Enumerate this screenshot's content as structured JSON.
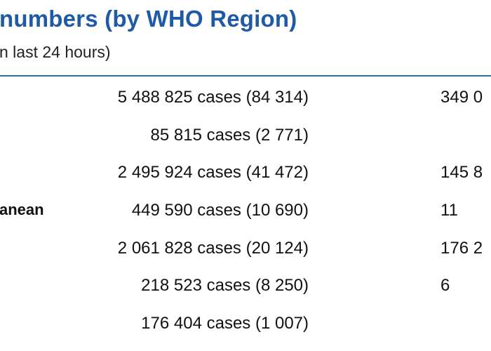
{
  "heading": {
    "title": "numbers (by WHO Region)",
    "subtitle": "n last 24 hours)"
  },
  "rows": [
    {
      "label": "",
      "cases": "5 488 825 cases (84 314)",
      "deaths": "349 0"
    },
    {
      "label": "",
      "cases": "85 815 cases (2 771)",
      "deaths": ""
    },
    {
      "label": "",
      "cases": "2 495 924 cases (41 472)",
      "deaths": "145 8"
    },
    {
      "label": "anean",
      "cases": "449 590 cases (10 690)",
      "deaths": "11"
    },
    {
      "label": "",
      "cases": "2 061 828 cases (20 124)",
      "deaths": "176 2"
    },
    {
      "label": "",
      "cases": "218 523 cases (8 250)",
      "deaths": "6"
    },
    {
      "label": "",
      "cases": "176 404 cases (1 007)",
      "deaths": ""
    }
  ],
  "colors": {
    "title": "#1f5aa6",
    "rule": "#2e6fb4",
    "text": "#111111"
  }
}
